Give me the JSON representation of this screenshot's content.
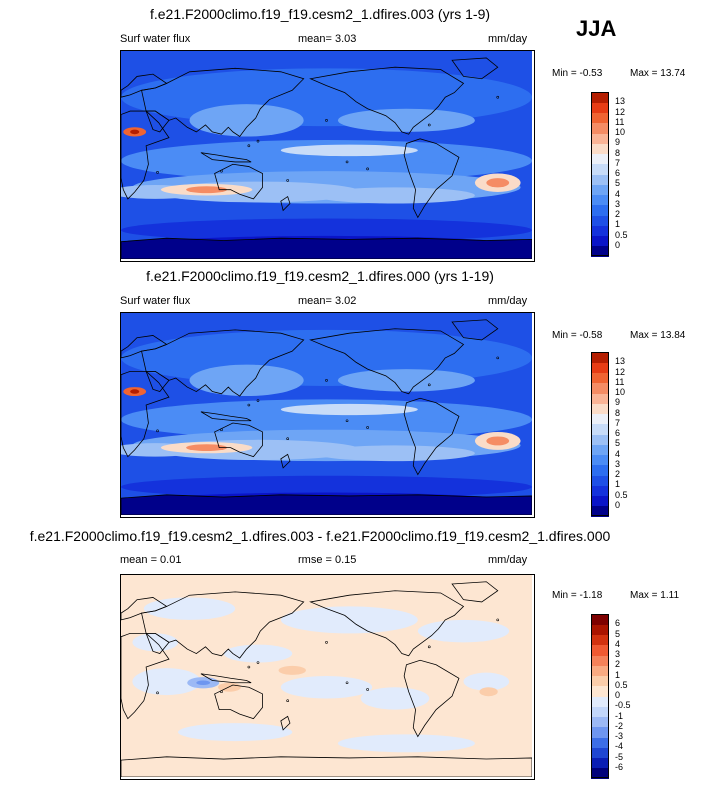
{
  "season": "JJA",
  "chart_data": [
    {
      "type": "heatmap",
      "title": "f.e21.F2000climo.f19_f19.cesm2_1.dfires.003 (yrs 1-9)",
      "left_label": "Surf water flux",
      "center_label": "mean=  3.03",
      "units": "mm/day",
      "min_label": "Min =  -0.53",
      "max_label": "Max =  13.74",
      "colorbar_levels": [
        "0",
        "0.5",
        "1",
        "2",
        "3",
        "4",
        "5",
        "6",
        "7",
        "8",
        "9",
        "10",
        "11",
        "12",
        "13"
      ],
      "colorbar_colors": [
        "#00008a",
        "#0a14c8",
        "#1432dc",
        "#1e50e6",
        "#2d6ef0",
        "#4b8cf5",
        "#6ea5f5",
        "#9cc0f5",
        "#c8dcf8",
        "#ecf0f8",
        "#fadcc8",
        "#fab496",
        "#f58c64",
        "#f06432",
        "#e63c14",
        "#b41e00"
      ]
    },
    {
      "type": "heatmap",
      "title": "f.e21.F2000climo.f19_f19.cesm2_1.dfires.000 (yrs 1-19)",
      "left_label": "Surf water flux",
      "center_label": "mean=  3.02",
      "units": "mm/day",
      "min_label": "Min =  -0.58",
      "max_label": "Max =  13.84",
      "colorbar_levels": [
        "0",
        "0.5",
        "1",
        "2",
        "3",
        "4",
        "5",
        "6",
        "7",
        "8",
        "9",
        "10",
        "11",
        "12",
        "13"
      ],
      "colorbar_colors": [
        "#00008a",
        "#0a14c8",
        "#1432dc",
        "#1e50e6",
        "#2d6ef0",
        "#4b8cf5",
        "#6ea5f5",
        "#9cc0f5",
        "#c8dcf8",
        "#ecf0f8",
        "#fadcc8",
        "#fab496",
        "#f58c64",
        "#f06432",
        "#e63c14",
        "#b41e00"
      ]
    },
    {
      "type": "heatmap",
      "title": "f.e21.F2000climo.f19_f19.cesm2_1.dfires.003 - f.e21.F2000climo.f19_f19.cesm2_1.dfires.000",
      "left_label": "mean =  0.01",
      "center_label": "rmse =  0.15",
      "units": "mm/day",
      "min_label": "Min =  -1.18",
      "max_label": "Max =  1.11",
      "colorbar_levels": [
        "-6",
        "-5",
        "-4",
        "-3",
        "-2",
        "-1",
        "-0.5",
        "0",
        "0.5",
        "1",
        "2",
        "3",
        "4",
        "5",
        "6"
      ],
      "colorbar_colors": [
        "#00007a",
        "#0a1eb4",
        "#1e46d2",
        "#3c6ee6",
        "#6e96f0",
        "#9cb9f5",
        "#c3d7fa",
        "#e1ebfc",
        "#fde6d2",
        "#fbcdaa",
        "#f9aa82",
        "#f5825a",
        "#f05a32",
        "#d2320f",
        "#aa1400",
        "#7d0000"
      ]
    }
  ]
}
